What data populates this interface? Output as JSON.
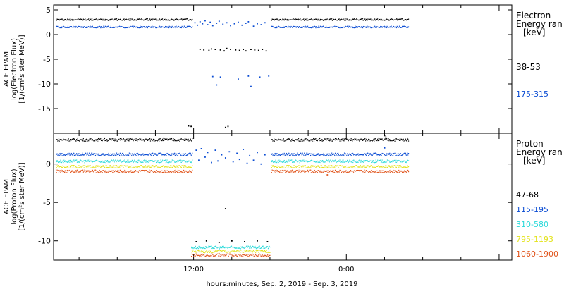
{
  "chart_data": {
    "xlabel": "hours:minutes, Sep.  2, 2019 - Sep.  3, 2019",
    "x_unit": "hours since Sep. 2, 2019 00:00",
    "xlim": [
      1,
      37
    ],
    "xticks": [
      {
        "x": 12,
        "label": "12:00"
      },
      {
        "x": 24,
        "label": "0:00"
      }
    ],
    "panels": [
      {
        "id": "electron",
        "type": "scatter",
        "ylabel_lines": [
          "ACE EPAM",
          "log(Electron Flux)",
          "[1/(cm²s ster MeV)]"
        ],
        "ylim": [
          -20,
          6
        ],
        "yticks": [
          {
            "v": 5,
            "label": "5"
          },
          {
            "v": 0,
            "label": "0"
          },
          {
            "v": -5,
            "label": "-5"
          },
          {
            "v": -10,
            "label": "-10"
          },
          {
            "v": -15,
            "label": "-15"
          }
        ],
        "legend_title": [
          "Electron",
          "Energy ran",
          "[keV]"
        ],
        "series": [
          {
            "name": "38-53",
            "color": "#000000",
            "segments": [
              {
                "x_start": 1.2,
                "x_end": 11.9,
                "y": 3.1
              },
              {
                "x_start": 18.1,
                "x_end": 28.9,
                "y": 3.1
              }
            ],
            "points": [
              [
                11.6,
                -18.5
              ],
              [
                11.8,
                -18.6
              ],
              [
                12.5,
                -3.0
              ],
              [
                12.8,
                -3.1
              ],
              [
                13.2,
                -3.2
              ],
              [
                13.4,
                -2.9
              ],
              [
                13.7,
                -3.0
              ],
              [
                14.1,
                -3.1
              ],
              [
                14.4,
                -3.3
              ],
              [
                14.6,
                -2.8
              ],
              [
                14.9,
                -3.0
              ],
              [
                15.3,
                -3.1
              ],
              [
                15.6,
                -3.2
              ],
              [
                15.9,
                -3.0
              ],
              [
                16.1,
                -3.3
              ],
              [
                16.5,
                -3.0
              ],
              [
                16.8,
                -3.1
              ],
              [
                17.1,
                -3.2
              ],
              [
                17.4,
                -3.0
              ],
              [
                17.7,
                -3.3
              ],
              [
                14.5,
                -18.8
              ],
              [
                14.7,
                -18.6
              ]
            ]
          },
          {
            "name": "175-315",
            "color": "#0a4cd3",
            "segments": [
              {
                "x_start": 1.2,
                "x_end": 11.9,
                "y": 1.6
              },
              {
                "x_start": 18.1,
                "x_end": 28.9,
                "y": 1.6
              }
            ],
            "points": [
              [
                12.1,
                2.4
              ],
              [
                12.3,
                1.9
              ],
              [
                12.5,
                2.6
              ],
              [
                12.7,
                2.2
              ],
              [
                12.9,
                2.8
              ],
              [
                13.1,
                2.0
              ],
              [
                13.3,
                2.5
              ],
              [
                13.5,
                1.8
              ],
              [
                13.8,
                2.3
              ],
              [
                14.0,
                2.7
              ],
              [
                14.3,
                2.1
              ],
              [
                14.6,
                2.4
              ],
              [
                14.9,
                1.8
              ],
              [
                15.2,
                2.2
              ],
              [
                15.5,
                2.5
              ],
              [
                15.8,
                1.9
              ],
              [
                16.1,
                2.3
              ],
              [
                16.3,
                2.6
              ],
              [
                16.7,
                1.7
              ],
              [
                17.0,
                2.2
              ],
              [
                17.3,
                2.0
              ],
              [
                17.6,
                2.4
              ],
              [
                13.5,
                -8.5
              ],
              [
                13.8,
                -10.2
              ],
              [
                14.1,
                -8.6
              ],
              [
                15.5,
                -9.0
              ],
              [
                16.3,
                -8.4
              ],
              [
                16.5,
                -10.5
              ],
              [
                17.2,
                -8.6
              ],
              [
                17.9,
                -8.4
              ]
            ]
          }
        ]
      },
      {
        "id": "proton",
        "type": "scatter",
        "ylabel_lines": [
          "ACE EPAM",
          "log(Proton Flux)",
          "[1/(cm²s ster MeV)]"
        ],
        "ylim": [
          -12.5,
          4
        ],
        "yticks": [
          {
            "v": 0,
            "label": "0"
          },
          {
            "v": -5,
            "label": "-5"
          },
          {
            "v": -10,
            "label": "-10"
          }
        ],
        "legend_title": [
          "Proton",
          "Energy ran",
          "[keV]"
        ],
        "series": [
          {
            "name": "47-68",
            "color": "#000000",
            "segments": [
              {
                "x_start": 1.2,
                "x_end": 11.9,
                "y": 3.2
              },
              {
                "x_start": 18.1,
                "x_end": 28.9,
                "y": 3.2
              }
            ],
            "points": [
              [
                27.0,
                3.7
              ],
              [
                27.1,
                3.5
              ],
              [
                14.5,
                -5.8
              ],
              [
                12.2,
                -10.1
              ],
              [
                13.0,
                -10.0
              ],
              [
                14.0,
                -10.2
              ],
              [
                15.0,
                -10.0
              ],
              [
                16.0,
                -10.1
              ],
              [
                17.0,
                -10.0
              ],
              [
                17.8,
                -10.1
              ]
            ]
          },
          {
            "name": "115-195",
            "color": "#0a4cd3",
            "segments": [
              {
                "x_start": 1.2,
                "x_end": 11.9,
                "y": 1.3
              },
              {
                "x_start": 18.1,
                "x_end": 28.9,
                "y": 1.3
              }
            ],
            "points": [
              [
                12.2,
                1.8
              ],
              [
                12.4,
                0.5
              ],
              [
                12.6,
                2.0
              ],
              [
                12.9,
                0.9
              ],
              [
                13.1,
                1.5
              ],
              [
                13.4,
                0.2
              ],
              [
                13.7,
                1.8
              ],
              [
                13.9,
                0.4
              ],
              [
                14.2,
                1.2
              ],
              [
                14.5,
                0.8
              ],
              [
                14.8,
                1.6
              ],
              [
                15.1,
                0.3
              ],
              [
                15.4,
                1.4
              ],
              [
                15.6,
                0.6
              ],
              [
                15.9,
                1.9
              ],
              [
                16.2,
                0.1
              ],
              [
                16.4,
                1.1
              ],
              [
                16.7,
                0.5
              ],
              [
                17.0,
                1.5
              ],
              [
                17.3,
                0.0
              ],
              [
                17.6,
                1.2
              ],
              [
                27.0,
                2.1
              ]
            ]
          },
          {
            "name": "310-580",
            "color": "#2ad9d9",
            "segments": [
              {
                "x_start": 1.2,
                "x_end": 11.9,
                "y": 0.4
              },
              {
                "x_start": 18.1,
                "x_end": 28.9,
                "y": 0.4
              },
              {
                "x_start": 11.8,
                "x_end": 18.0,
                "y": -10.8
              }
            ],
            "points": []
          },
          {
            "name": "795-1193",
            "color": "#e3e31a",
            "segments": [
              {
                "x_start": 1.2,
                "x_end": 11.9,
                "y": -0.3
              },
              {
                "x_start": 18.1,
                "x_end": 28.9,
                "y": -0.3
              },
              {
                "x_start": 11.8,
                "x_end": 18.0,
                "y": -11.3
              }
            ],
            "points": []
          },
          {
            "name": "1060-1900",
            "color": "#e0531a",
            "segments": [
              {
                "x_start": 1.2,
                "x_end": 11.9,
                "y": -0.9
              },
              {
                "x_start": 18.1,
                "x_end": 28.9,
                "y": -0.9
              },
              {
                "x_start": 11.8,
                "x_end": 18.0,
                "y": -11.8
              }
            ],
            "points": [
              [
                22.5,
                -1.4
              ]
            ]
          }
        ]
      }
    ]
  }
}
